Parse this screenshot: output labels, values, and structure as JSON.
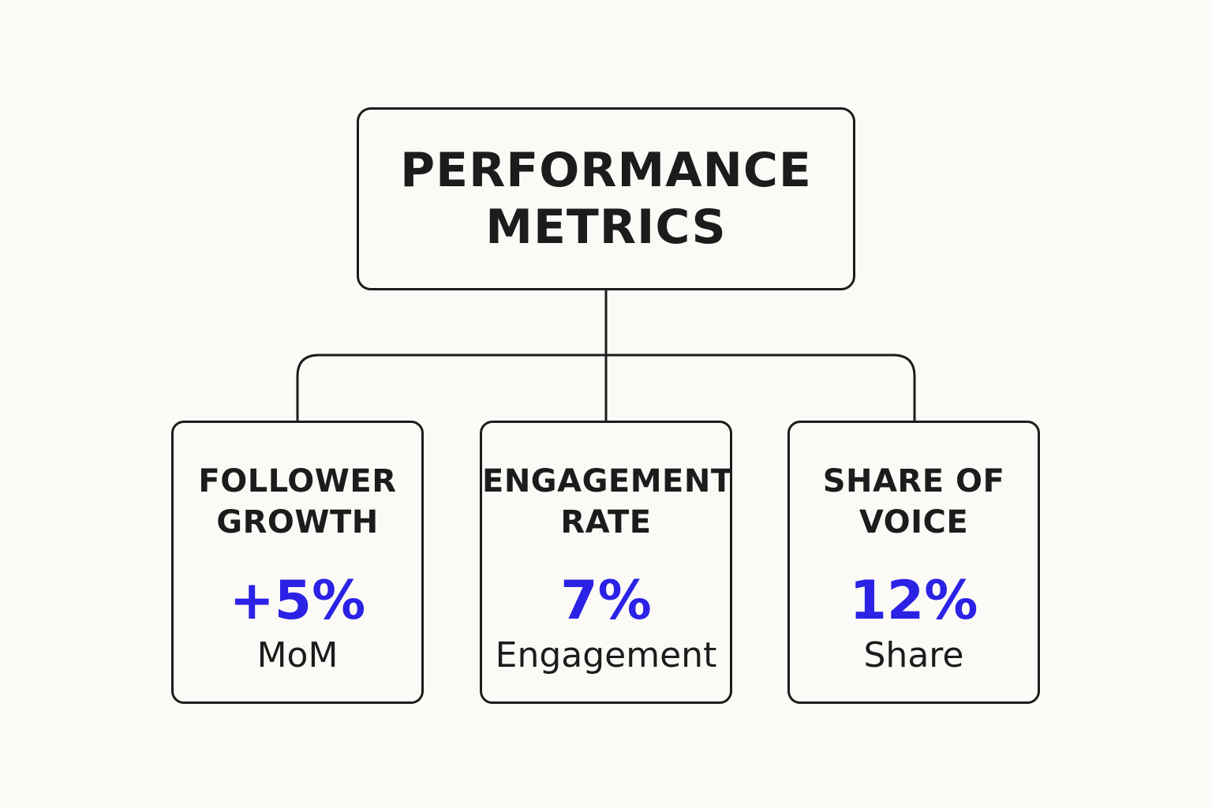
{
  "colors": {
    "background": "#fbfaf6",
    "stroke": "#1c1c1c",
    "text": "#1c1c1c",
    "accent": "#2b22e6"
  },
  "root": {
    "title_lines": [
      "PERFORMANCE",
      "METRICS"
    ]
  },
  "metrics": [
    {
      "title_lines": [
        "FOLLOWER",
        "GROWTH"
      ],
      "value": "+5%",
      "unit": "MoM"
    },
    {
      "title_lines": [
        "ENGAGEMENT",
        "RATE"
      ],
      "value": "7%",
      "unit": "Engagement"
    },
    {
      "title_lines": [
        "SHARE OF",
        "VOICE"
      ],
      "value": "12%",
      "unit": "Share"
    }
  ]
}
